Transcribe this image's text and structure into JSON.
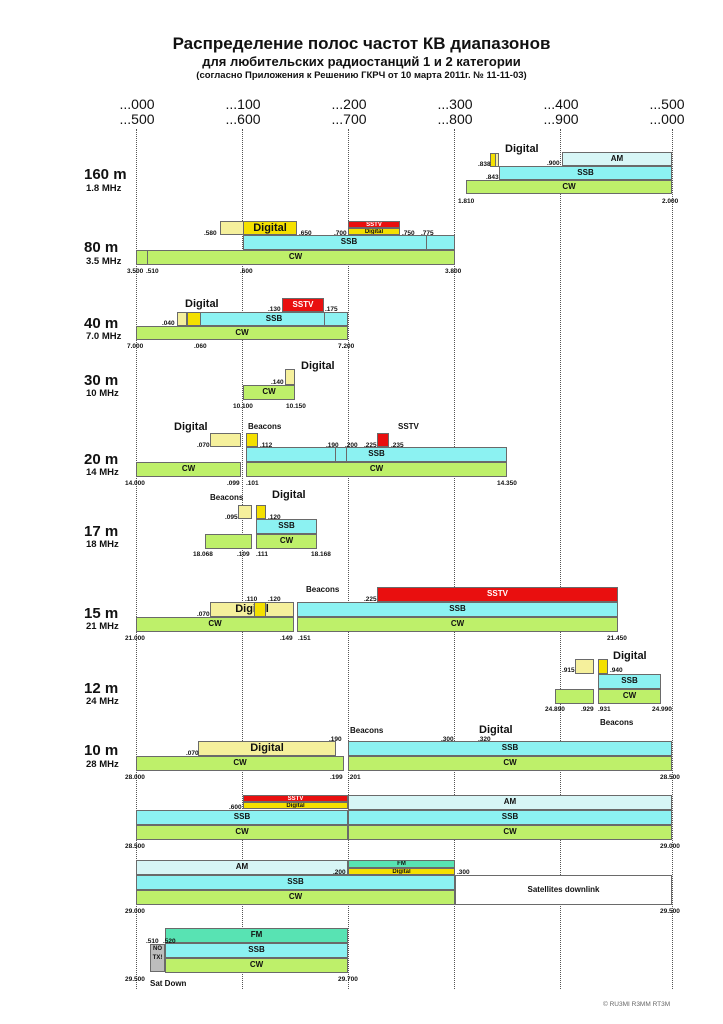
{
  "title": {
    "line1": "Распределение полос частот КВ диапазонов",
    "line2": "для любительских радиостанций 1 и 2 категории",
    "line3": "(согласно Приложения к Решению ГКРЧ от 10 марта 2011г. № 11-11-03)"
  },
  "scale": {
    "top": [
      "...000",
      "...100",
      "...200",
      "...300",
      "...400",
      "...500"
    ],
    "bottom": [
      "...500",
      "...600",
      "...700",
      "...800",
      "...900",
      "...000"
    ]
  },
  "bands": {
    "b160": {
      "name": "160 m",
      "freq": "1.8 MHz"
    },
    "b80": {
      "name": "80 m",
      "freq": "3.5 MHz"
    },
    "b40": {
      "name": "40 m",
      "freq": "7.0 MHz"
    },
    "b30": {
      "name": "30 m",
      "freq": "10 MHz"
    },
    "b20": {
      "name": "20 m",
      "freq": "14 MHz"
    },
    "b17": {
      "name": "17 m",
      "freq": "18 MHz"
    },
    "b15": {
      "name": "15 m",
      "freq": "21 MHz"
    },
    "b12": {
      "name": "12 m",
      "freq": "24 MHz"
    },
    "b10": {
      "name": "10 m",
      "freq": "28 MHz"
    }
  },
  "modes": {
    "cw": "CW",
    "ssb": "SSB",
    "digital": "Digital",
    "sstv": "SSTV",
    "am": "AM",
    "fm": "FM",
    "beacons": "Beacons",
    "sat_down": "Satellites downlink",
    "no_tx": "NO TX!",
    "sat_down_short": "Sat Down"
  },
  "labels": {
    "b160": [
      ".838",
      ".843",
      ".900",
      "1.810",
      "2.000"
    ],
    "b80": [
      ".580",
      ".650",
      ".700",
      ".750",
      ".775",
      "3.500",
      ".510",
      ".600",
      "3.800"
    ],
    "b40": [
      ".040",
      ".060",
      ".130",
      ".175",
      "7.000",
      "7.200"
    ],
    "b30": [
      ".140",
      "10.100",
      "10.150"
    ],
    "b20": [
      ".070",
      ".112",
      ".190",
      ".200",
      ".225",
      ".235",
      "14.000",
      ".099",
      ".101",
      "14.350"
    ],
    "b17": [
      ".095",
      ".120",
      "18.068",
      ".109",
      ".111",
      "18.168"
    ],
    "b15": [
      ".110",
      ".120",
      ".070",
      ".225",
      "21.000",
      ".149",
      ".151",
      "21.450"
    ],
    "b12": [
      ".915",
      ".940",
      "24.890",
      ".929",
      ".931",
      "24.990"
    ],
    "b10": [
      ".190",
      ".300",
      ".320",
      ".070",
      "28.000",
      ".199",
      ".201",
      "28.500"
    ],
    "b10b": [
      ".600",
      "28.500",
      "29.000"
    ],
    "b10c": [
      ".200",
      ".300",
      "29.000",
      "29.500"
    ],
    "b10d": [
      ".510",
      ".520",
      "29.500",
      "29.700"
    ]
  },
  "copyright": "© RU3MI  R3MM  RT3M",
  "colors": {
    "cw": "#bef06a",
    "ssb": "#8cf2f2",
    "digital_light": "#f5f09c",
    "digital_yellow": "#f4e000",
    "sstv": "#e90f0f",
    "am": "#d7f6f6",
    "fm": "#58e3b3"
  }
}
